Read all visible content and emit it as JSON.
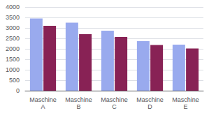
{
  "chart_data": {
    "type": "bar",
    "categories": [
      "Maschine\nA",
      "Maschine\nB",
      "Maschine\nC",
      "Maschine\nD",
      "Maschine\nE"
    ],
    "series": [
      {
        "color": "#99AAEE",
        "values": [
          3450,
          3250,
          2870,
          2370,
          2200
        ]
      },
      {
        "color": "#882255",
        "values": [
          3100,
          2700,
          2570,
          2180,
          2020
        ]
      }
    ],
    "ylim": [
      0,
      4000
    ],
    "yticks": [
      0,
      500,
      1000,
      1500,
      2000,
      2500,
      3000,
      3500,
      4000
    ],
    "grid": true
  }
}
